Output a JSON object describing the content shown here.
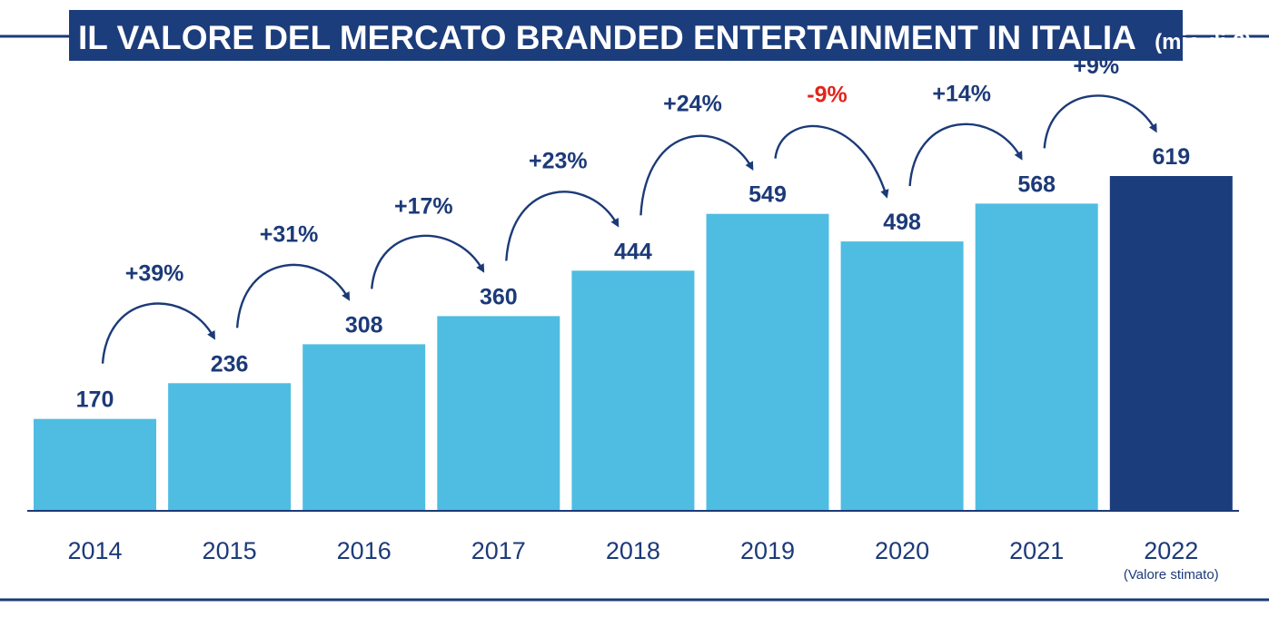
{
  "chart_data": {
    "type": "bar",
    "title": "IL VALORE DEL MERCATO BRANDED ENTERTAINMENT IN ITALIA",
    "title_unit": "(mio di €)",
    "xlabel": "",
    "ylabel": "",
    "ylim": [
      0,
      619
    ],
    "grid": false,
    "categories": [
      "2014",
      "2015",
      "2016",
      "2017",
      "2018",
      "2019",
      "2020",
      "2021",
      "2022"
    ],
    "values": [
      170,
      236,
      308,
      360,
      444,
      549,
      498,
      568,
      619
    ],
    "value_labels": [
      "170",
      "236",
      "308",
      "360",
      "444",
      "549",
      "498",
      "568",
      "619"
    ],
    "growth_labels": [
      "+39%",
      "+31%",
      "+17%",
      "+23%",
      "+24%",
      "-9%",
      "+14%",
      "+9%"
    ],
    "growth_negative": [
      false,
      false,
      false,
      false,
      false,
      true,
      false,
      false
    ],
    "category_notes": [
      "",
      "",
      "",
      "",
      "",
      "",
      "",
      "",
      "(Valore stimato)"
    ],
    "highlight_index": 8
  },
  "colors": {
    "bar": "#4fbde2",
    "bar_highlight": "#1c3d7c",
    "title_bg": "#1c3d7c",
    "text": "#1c3a78",
    "negative": "#e2241b",
    "arrow": "#1c3a78",
    "rule": "#1c3a78"
  }
}
